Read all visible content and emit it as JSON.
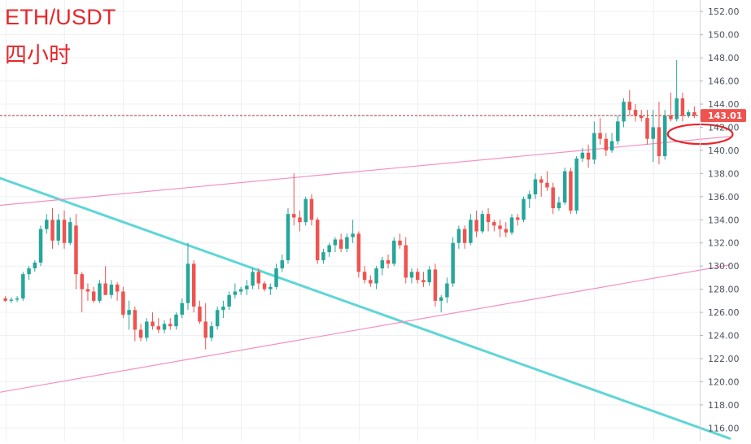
{
  "title": "ETH/USDT",
  "subtitle": "四小时",
  "colors": {
    "up": "#26a69a",
    "down": "#ef5350",
    "grid": "#eef0f3",
    "axis_text": "#4c525e",
    "trend_cyan": "#5fd6d6",
    "trend_pink": "#f48fc4",
    "current_price_line": "#9b3a3a",
    "highlight_ellipse": "#e8262b",
    "title": "#e8262b"
  },
  "chart_data": {
    "type": "candlestick",
    "title": "ETH/USDT",
    "subtitle": "四小时",
    "ylim": [
      114.9,
      153.0
    ],
    "y_ticks": [
      116,
      118,
      120,
      122,
      124,
      126,
      128,
      130,
      132,
      134,
      136,
      138,
      140,
      142,
      144,
      146,
      148,
      150,
      152
    ],
    "y_tick_labels": [
      "116.00",
      "118.00",
      "120.00",
      "122.00",
      "124.00",
      "126.00",
      "128.00",
      "130.00",
      "132.00",
      "134.00",
      "136.00",
      "138.00",
      "140.00",
      "142.00",
      "144.00",
      "146.00",
      "148.00",
      "150.00",
      "152.00"
    ],
    "current_price": 143.01,
    "current_price_label": "143.01",
    "grid": true,
    "candles": [
      [
        127.2,
        127.4,
        126.9,
        127.0
      ],
      [
        127.0,
        127.3,
        126.8,
        127.1
      ],
      [
        127.1,
        127.4,
        126.9,
        127.2
      ],
      [
        127.2,
        129.5,
        127.0,
        129.3
      ],
      [
        129.3,
        130.0,
        128.8,
        129.8
      ],
      [
        129.8,
        130.5,
        129.5,
        130.3
      ],
      [
        130.3,
        133.5,
        130.0,
        133.2
      ],
      [
        133.2,
        134.5,
        132.8,
        134.0
      ],
      [
        134.0,
        135.0,
        131.5,
        132.2
      ],
      [
        132.2,
        134.5,
        131.8,
        134.0
      ],
      [
        134.0,
        134.8,
        131.5,
        132.0
      ],
      [
        132.0,
        134.2,
        131.8,
        133.8
      ],
      [
        133.5,
        134.5,
        128.0,
        129.3
      ],
      [
        129.3,
        129.5,
        126.0,
        128.0
      ],
      [
        128.0,
        128.5,
        127.0,
        127.8
      ],
      [
        127.8,
        128.2,
        126.8,
        127.0
      ],
      [
        127.0,
        128.8,
        126.8,
        128.5
      ],
      [
        128.5,
        130.0,
        127.8,
        127.5
      ],
      [
        127.5,
        128.8,
        127.2,
        128.4
      ],
      [
        128.4,
        128.6,
        127.0,
        127.8
      ],
      [
        127.8,
        128.2,
        125.5,
        125.8
      ],
      [
        125.8,
        127.0,
        124.5,
        126.2
      ],
      [
        126.2,
        126.5,
        123.5,
        124.5
      ],
      [
        124.5,
        125.0,
        123.5,
        123.8
      ],
      [
        123.8,
        125.5,
        123.5,
        125.2
      ],
      [
        125.2,
        126.0,
        124.5,
        124.8
      ],
      [
        124.8,
        125.5,
        124.2,
        124.5
      ],
      [
        124.5,
        125.3,
        124.2,
        125.0
      ],
      [
        125.0,
        125.5,
        124.5,
        124.8
      ],
      [
        124.8,
        126.0,
        124.5,
        125.8
      ],
      [
        125.8,
        127.2,
        125.5,
        126.8
      ],
      [
        126.8,
        132.0,
        126.2,
        130.2
      ],
      [
        130.2,
        130.5,
        126.0,
        126.5
      ],
      [
        126.5,
        127.0,
        125.0,
        125.2
      ],
      [
        125.2,
        126.8,
        122.8,
        123.8
      ],
      [
        123.8,
        125.2,
        123.5,
        124.8
      ],
      [
        124.8,
        126.5,
        124.5,
        126.2
      ],
      [
        126.2,
        127.0,
        125.5,
        126.5
      ],
      [
        126.5,
        127.8,
        126.2,
        127.5
      ],
      [
        127.5,
        128.5,
        127.2,
        127.8
      ],
      [
        127.8,
        128.2,
        127.5,
        128.0
      ],
      [
        128.0,
        128.8,
        127.5,
        128.3
      ],
      [
        128.3,
        129.8,
        128.0,
        129.5
      ],
      [
        129.5,
        129.8,
        128.0,
        128.5
      ],
      [
        128.5,
        128.7,
        127.8,
        128.0
      ],
      [
        128.0,
        128.5,
        127.5,
        128.2
      ],
      [
        128.2,
        130.2,
        128.0,
        129.8
      ],
      [
        129.8,
        131.0,
        129.5,
        130.5
      ],
      [
        130.5,
        135.0,
        130.2,
        134.5
      ],
      [
        134.5,
        138.0,
        133.5,
        134.2
      ],
      [
        134.2,
        134.8,
        133.0,
        133.8
      ],
      [
        133.8,
        136.0,
        133.5,
        135.8
      ],
      [
        135.8,
        136.2,
        133.5,
        134.0
      ],
      [
        134.0,
        134.2,
        130.2,
        130.5
      ],
      [
        130.5,
        131.5,
        130.2,
        131.2
      ],
      [
        131.2,
        132.0,
        130.8,
        131.8
      ],
      [
        131.8,
        132.5,
        131.2,
        132.3
      ],
      [
        132.3,
        132.8,
        131.2,
        131.5
      ],
      [
        131.5,
        132.8,
        131.2,
        132.5
      ],
      [
        132.5,
        134.0,
        132.0,
        132.8
      ],
      [
        132.8,
        133.0,
        129.0,
        129.5
      ],
      [
        129.5,
        130.0,
        128.5,
        128.8
      ],
      [
        128.8,
        129.2,
        128.2,
        128.5
      ],
      [
        128.5,
        130.0,
        128.0,
        129.8
      ],
      [
        129.8,
        130.8,
        129.2,
        130.5
      ],
      [
        130.5,
        131.0,
        129.8,
        130.2
      ],
      [
        130.2,
        132.5,
        130.0,
        132.2
      ],
      [
        132.2,
        132.8,
        131.5,
        131.8
      ],
      [
        131.8,
        132.5,
        128.5,
        129.0
      ],
      [
        129.0,
        129.8,
        128.5,
        129.5
      ],
      [
        129.5,
        129.8,
        128.5,
        128.8
      ],
      [
        128.8,
        129.5,
        128.2,
        128.6
      ],
      [
        128.6,
        130.0,
        128.3,
        129.7
      ],
      [
        129.7,
        130.2,
        126.5,
        127.0
      ],
      [
        127.0,
        127.5,
        126.0,
        127.3
      ],
      [
        127.3,
        129.0,
        126.8,
        128.5
      ],
      [
        128.5,
        132.5,
        128.2,
        132.0
      ],
      [
        132.0,
        133.5,
        131.5,
        133.2
      ],
      [
        133.2,
        133.5,
        131.5,
        132.0
      ],
      [
        132.0,
        134.5,
        131.8,
        134.0
      ],
      [
        134.0,
        134.8,
        132.5,
        133.0
      ],
      [
        133.0,
        134.8,
        132.8,
        134.5
      ],
      [
        134.5,
        135.0,
        133.0,
        133.8
      ],
      [
        133.8,
        134.0,
        133.0,
        133.5
      ],
      [
        133.5,
        134.0,
        132.5,
        133.2
      ],
      [
        133.2,
        133.8,
        132.5,
        132.9
      ],
      [
        132.9,
        134.5,
        132.7,
        134.2
      ],
      [
        134.2,
        134.5,
        133.5,
        134.0
      ],
      [
        134.0,
        136.0,
        133.8,
        135.8
      ],
      [
        135.8,
        136.5,
        135.0,
        136.2
      ],
      [
        136.2,
        138.0,
        135.8,
        137.5
      ],
      [
        137.5,
        137.8,
        136.0,
        137.2
      ],
      [
        137.2,
        138.2,
        136.5,
        136.8
      ],
      [
        136.8,
        137.2,
        134.5,
        135.0
      ],
      [
        135.0,
        136.0,
        134.8,
        135.5
      ],
      [
        135.5,
        138.5,
        135.3,
        138.2
      ],
      [
        138.2,
        138.5,
        134.5,
        134.8
      ],
      [
        134.8,
        139.5,
        134.5,
        139.3
      ],
      [
        139.3,
        140.2,
        139.0,
        139.8
      ],
      [
        139.8,
        140.5,
        138.5,
        139.2
      ],
      [
        139.2,
        142.5,
        138.8,
        141.5
      ],
      [
        141.5,
        142.8,
        140.5,
        141.0
      ],
      [
        141.0,
        141.5,
        139.5,
        140.0
      ],
      [
        140.0,
        141.5,
        139.8,
        140.8
      ],
      [
        140.8,
        143.0,
        140.5,
        142.5
      ],
      [
        142.5,
        144.5,
        142.0,
        144.2
      ],
      [
        144.2,
        145.2,
        143.0,
        143.5
      ],
      [
        143.5,
        144.0,
        142.5,
        143.0
      ],
      [
        143.0,
        143.5,
        142.5,
        142.8
      ],
      [
        142.8,
        143.5,
        140.5,
        141.0
      ],
      [
        141.0,
        143.5,
        139.0,
        142.0
      ],
      [
        142.0,
        144.2,
        138.8,
        139.5
      ],
      [
        139.5,
        143.5,
        139.2,
        143.0
      ],
      [
        143.0,
        145.0,
        142.5,
        142.7
      ],
      [
        142.7,
        147.8,
        142.5,
        144.5
      ],
      [
        144.5,
        145.0,
        142.5,
        143.0
      ],
      [
        143.0,
        143.5,
        142.8,
        143.3
      ],
      [
        143.3,
        143.8,
        142.8,
        143.01
      ]
    ],
    "trendlines": [
      {
        "color": "cyan",
        "points": [
          [
            -2,
            137.8
          ],
          [
            123,
            115.1
          ]
        ]
      },
      {
        "color": "pink",
        "points": [
          [
            -2,
            135.2
          ],
          [
            123,
            141.2
          ]
        ]
      },
      {
        "color": "pink",
        "points": [
          [
            -2,
            119.0
          ],
          [
            123,
            130.1
          ]
        ]
      }
    ],
    "highlight_ellipse": {
      "center": [
        118,
        141.4
      ],
      "rx_candles": 5.5,
      "ry_price": 0.85
    }
  }
}
